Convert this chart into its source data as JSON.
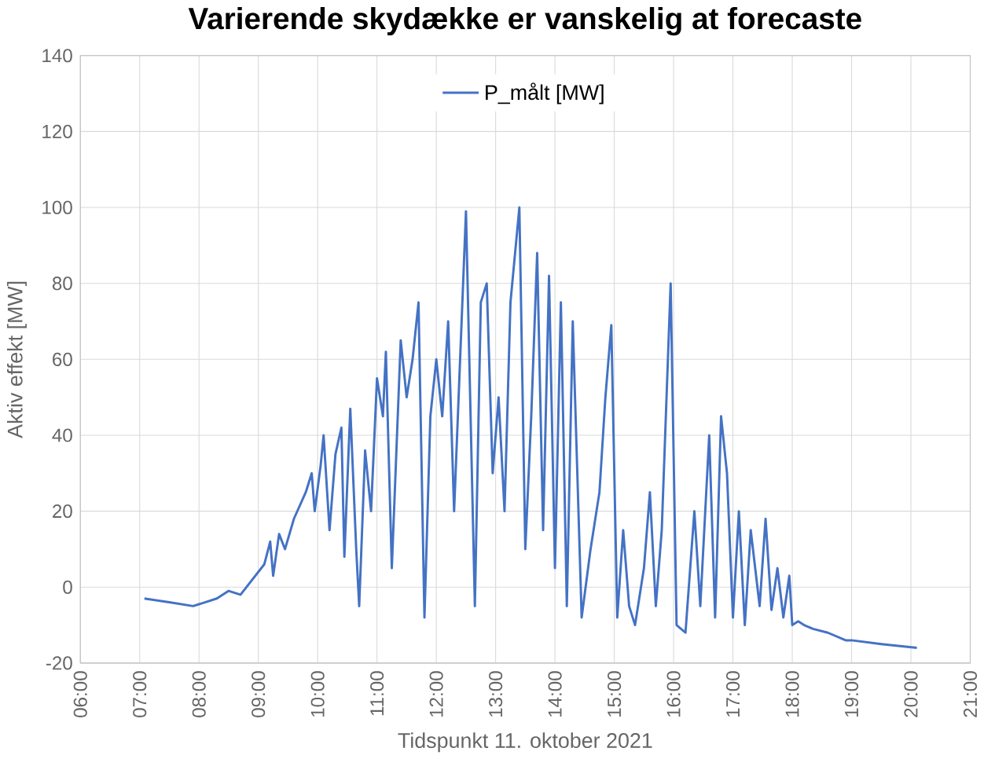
{
  "chart_data": {
    "type": "line",
    "title": "Varierende skydække er vanskelig at forecaste",
    "xlabel": "Tidspunkt 11. oktober 2021",
    "ylabel": "Aktiv effekt [MW]",
    "xlim": [
      6,
      21
    ],
    "xticks": [
      {
        "value": 6,
        "label": "06:00"
      },
      {
        "value": 7,
        "label": "07:00"
      },
      {
        "value": 8,
        "label": "08:00"
      },
      {
        "value": 9,
        "label": "09:00"
      },
      {
        "value": 10,
        "label": "10:00"
      },
      {
        "value": 11,
        "label": "11:00"
      },
      {
        "value": 12,
        "label": "12:00"
      },
      {
        "value": 13,
        "label": "13:00"
      },
      {
        "value": 14,
        "label": "14:00"
      },
      {
        "value": 15,
        "label": "15:00"
      },
      {
        "value": 16,
        "label": "16:00"
      },
      {
        "value": 17,
        "label": "17:00"
      },
      {
        "value": 18,
        "label": "18:00"
      },
      {
        "value": 19,
        "label": "19:00"
      },
      {
        "value": 20,
        "label": "20:00"
      },
      {
        "value": 21,
        "label": "21:00"
      }
    ],
    "ylim": [
      -20,
      140
    ],
    "yticks": [
      -20,
      0,
      20,
      40,
      60,
      80,
      100,
      120,
      140
    ],
    "grid": true,
    "legend": "top",
    "marker": "none",
    "line_style": "solid",
    "series": [
      {
        "name": "P_målt [MW]",
        "color": "#4472c4",
        "x": [
          7.08,
          7.5,
          7.9,
          8.1,
          8.3,
          8.5,
          8.7,
          8.9,
          9.1,
          9.2,
          9.25,
          9.35,
          9.45,
          9.6,
          9.8,
          9.9,
          9.95,
          10.05,
          10.1,
          10.2,
          10.3,
          10.4,
          10.45,
          10.55,
          10.65,
          10.7,
          10.8,
          10.9,
          11.0,
          11.1,
          11.15,
          11.25,
          11.4,
          11.5,
          11.6,
          11.7,
          11.8,
          11.9,
          12.0,
          12.1,
          12.2,
          12.3,
          12.5,
          12.65,
          12.75,
          12.85,
          12.95,
          13.05,
          13.15,
          13.25,
          13.4,
          13.5,
          13.6,
          13.7,
          13.8,
          13.9,
          14.0,
          14.1,
          14.2,
          14.3,
          14.45,
          14.6,
          14.75,
          14.85,
          14.95,
          15.05,
          15.15,
          15.25,
          15.35,
          15.5,
          15.6,
          15.7,
          15.8,
          15.95,
          16.05,
          16.2,
          16.35,
          16.45,
          16.6,
          16.7,
          16.8,
          16.9,
          17.0,
          17.1,
          17.2,
          17.3,
          17.45,
          17.55,
          17.65,
          17.75,
          17.85,
          17.95,
          18.0,
          18.1,
          18.2,
          18.35,
          18.6,
          18.9,
          19.0,
          19.5,
          20.1
        ],
        "values": [
          -3,
          -4,
          -5,
          -4,
          -3,
          -1,
          -2,
          2,
          6,
          12,
          3,
          14,
          10,
          18,
          25,
          30,
          20,
          32,
          40,
          15,
          35,
          42,
          8,
          47,
          10,
          -5,
          36,
          20,
          55,
          45,
          62,
          5,
          65,
          50,
          60,
          75,
          -8,
          45,
          60,
          45,
          70,
          20,
          99,
          -5,
          75,
          80,
          30,
          50,
          20,
          75,
          100,
          10,
          45,
          88,
          15,
          82,
          5,
          75,
          -5,
          70,
          -8,
          10,
          25,
          50,
          69,
          -8,
          15,
          -5,
          -10,
          5,
          25,
          -5,
          15,
          80,
          -10,
          -12,
          20,
          -5,
          40,
          -8,
          45,
          30,
          -8,
          20,
          -10,
          15,
          -5,
          18,
          -6,
          5,
          -8,
          3,
          -10,
          -9,
          -10,
          -11,
          -12,
          -14,
          -14,
          -15,
          -16
        ]
      }
    ]
  }
}
